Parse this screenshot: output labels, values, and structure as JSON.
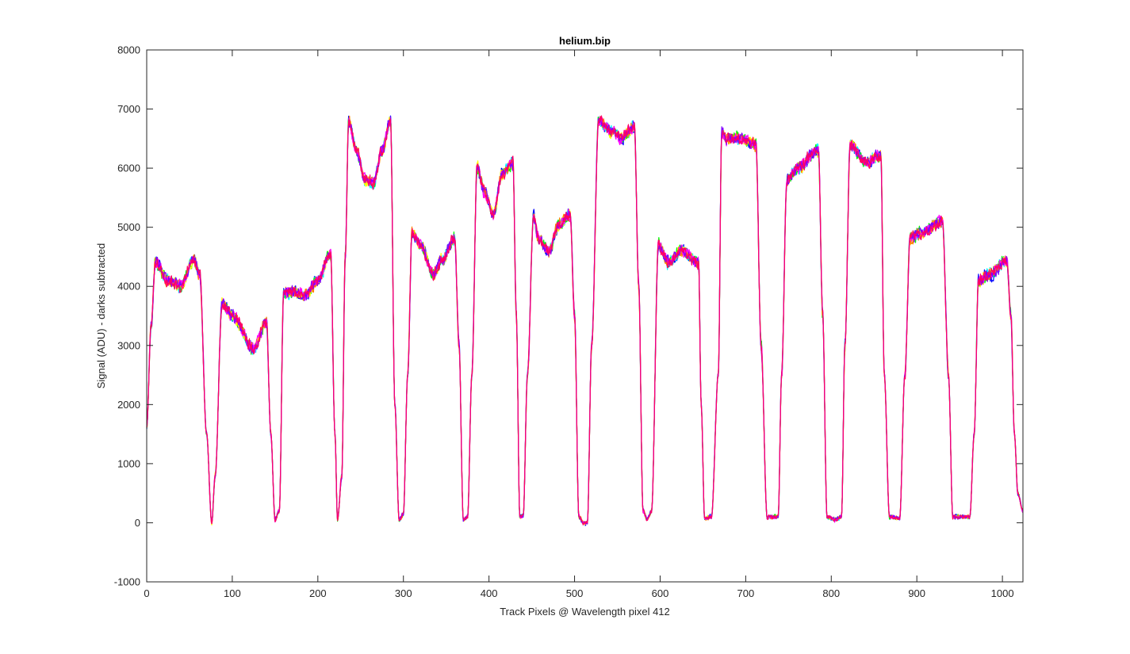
{
  "chart_data": {
    "type": "line",
    "title": "helium.bip",
    "xlabel": "Track Pixels @ Wavelength pixel 412",
    "ylabel": "Signal (ADU) - darks subtracted",
    "xlim": [
      0,
      1024
    ],
    "ylim": [
      -1000,
      8000
    ],
    "xticks": [
      0,
      100,
      200,
      300,
      400,
      500,
      600,
      700,
      800,
      900,
      1000
    ],
    "yticks": [
      -1000,
      0,
      1000,
      2000,
      3000,
      4000,
      5000,
      6000,
      7000,
      8000
    ],
    "grid": false,
    "legend": "none",
    "series_colors": [
      "#0000ff",
      "#00ffff",
      "#00ff00",
      "#ffff00",
      "#ff8000",
      "#ff00ff",
      "#8000ff",
      "#ff0066"
    ],
    "profile": {
      "x": [
        0,
        5,
        10,
        25,
        40,
        55,
        62,
        70,
        76,
        80,
        88,
        100,
        125,
        140,
        145,
        150,
        155,
        160,
        170,
        185,
        200,
        215,
        220,
        223,
        228,
        232,
        236,
        245,
        255,
        265,
        275,
        285,
        290,
        295,
        300,
        305,
        310,
        320,
        335,
        345,
        360,
        365,
        370,
        375,
        380,
        386,
        395,
        405,
        415,
        428,
        432,
        436,
        440,
        445,
        452,
        458,
        470,
        482,
        495,
        500,
        505,
        510,
        515,
        520,
        528,
        545,
        555,
        570,
        575,
        580,
        585,
        590,
        598,
        610,
        625,
        645,
        648,
        652,
        660,
        668,
        672,
        678,
        695,
        712,
        718,
        725,
        738,
        742,
        748,
        760,
        785,
        790,
        795,
        805,
        812,
        816,
        822,
        840,
        858,
        862,
        868,
        880,
        886,
        892,
        905,
        930,
        937,
        942,
        950,
        962,
        967,
        972,
        985,
        1005,
        1010,
        1014,
        1018,
        1024
      ],
      "y": [
        1600,
        3300,
        4400,
        4100,
        4000,
        4450,
        4200,
        1500,
        0,
        800,
        3700,
        3500,
        2950,
        3400,
        1500,
        50,
        200,
        3900,
        3900,
        3850,
        4100,
        4550,
        1500,
        50,
        800,
        4500,
        6800,
        6300,
        5800,
        5750,
        6300,
        6800,
        2000,
        50,
        150,
        2500,
        4900,
        4700,
        4200,
        4450,
        4800,
        3000,
        50,
        100,
        2500,
        6000,
        5600,
        5200,
        5900,
        6100,
        3500,
        100,
        120,
        2500,
        5200,
        4800,
        4600,
        5050,
        5200,
        3500,
        100,
        0,
        0,
        3000,
        6800,
        6600,
        6500,
        6700,
        4000,
        200,
        60,
        200,
        4700,
        4400,
        4600,
        4400,
        2000,
        80,
        100,
        2500,
        6600,
        6500,
        6500,
        6400,
        3000,
        100,
        100,
        2500,
        5800,
        6000,
        6300,
        3500,
        100,
        50,
        100,
        3000,
        6400,
        6100,
        6200,
        2500,
        100,
        80,
        2500,
        4800,
        4900,
        5100,
        2500,
        100,
        100,
        100,
        1500,
        4100,
        4200,
        4450,
        3500,
        1500,
        500,
        200
      ]
    }
  }
}
